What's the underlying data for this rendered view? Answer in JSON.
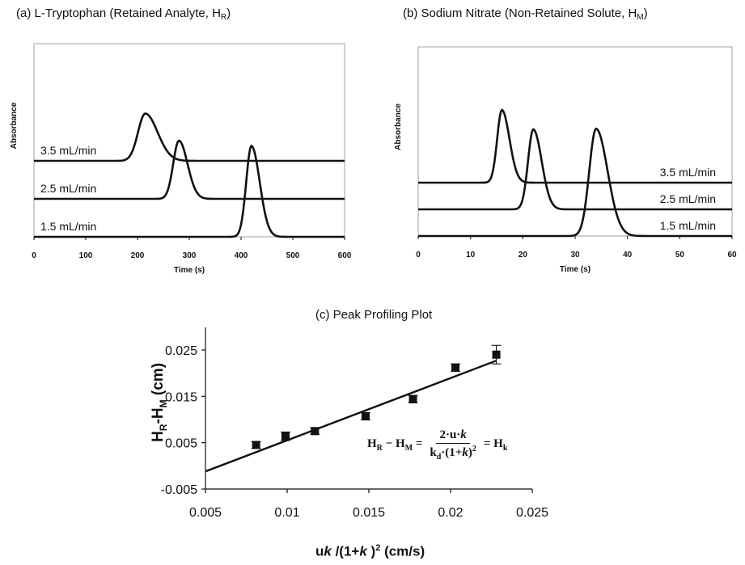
{
  "panels": {
    "a": {
      "title_main": "(a) L-Tryptophan (Retained Analyte, H",
      "title_sub": "R",
      "title_end": ")"
    },
    "b": {
      "title_main": "(b) Sodium Nitrate (Non-Retained Solute, H",
      "title_sub": "M",
      "title_end": ")"
    },
    "c": {
      "title": "(c) Peak Profiling Plot",
      "ylabel": "HR-HM (cm)",
      "xlabel": "uk /(1+k )2 (cm/s)",
      "formula": {
        "lhs": "H_R − H_M =",
        "numerator": "2·u·k",
        "denominator": "k_d·(1+k)^2",
        "rhs": "= H_k"
      }
    }
  },
  "chart_data": [
    {
      "type": "line",
      "title": "(a) L-Tryptophan (Retained Analyte, HR)",
      "xlabel": "Time (s)",
      "ylabel": "Absorbance",
      "xlim": [
        0,
        600
      ],
      "xticks": [
        "0",
        "100",
        "200",
        "300",
        "400",
        "500",
        "600"
      ],
      "grid": false,
      "series": [
        {
          "name": "3.5 mL/min",
          "baseline": 2,
          "peak_time": 215,
          "peak_height": 2.6
        },
        {
          "name": "2.5 mL/min",
          "baseline": 1,
          "peak_time": 280,
          "peak_height": 3.2
        },
        {
          "name": "1.5 mL/min",
          "baseline": 0,
          "peak_time": 420,
          "peak_height": 5.0
        }
      ]
    },
    {
      "type": "line",
      "title": "(b) Sodium Nitrate (Non-Retained Solute, HM)",
      "xlabel": "Time (s)",
      "ylabel": "Absorbance",
      "xlim": [
        0,
        60
      ],
      "xticks": [
        "0",
        "10",
        "20",
        "30",
        "40",
        "50",
        "60"
      ],
      "grid": false,
      "series": [
        {
          "name": "3.5 mL/min",
          "baseline": 2,
          "peak_time": 16,
          "peak_height": 4.0
        },
        {
          "name": "2.5 mL/min",
          "baseline": 1,
          "peak_time": 22,
          "peak_height": 4.4
        },
        {
          "name": "1.5 mL/min",
          "baseline": 0,
          "peak_time": 34,
          "peak_height": 5.9
        }
      ]
    },
    {
      "type": "scatter",
      "title": "(c) Peak Profiling Plot",
      "xlabel": "uk /(1+k )2 (cm/s)",
      "ylabel": "HR-HM (cm)",
      "xlim": [
        0.005,
        0.025
      ],
      "ylim": [
        -0.005,
        0.03
      ],
      "xticks": [
        "0.005",
        "0.01",
        "0.015",
        "0.02",
        "0.025"
      ],
      "yticks": [
        "-0.005",
        "0.005",
        "0.015",
        "0.025"
      ],
      "grid": false,
      "points": [
        {
          "x": 0.0081,
          "y": 0.0045,
          "err": 0.0007
        },
        {
          "x": 0.0099,
          "y": 0.0064,
          "err": 0.0009
        },
        {
          "x": 0.0117,
          "y": 0.0075,
          "err": 0.0007
        },
        {
          "x": 0.0148,
          "y": 0.0107,
          "err": 0.0008
        },
        {
          "x": 0.0177,
          "y": 0.0144,
          "err": 0.0008
        },
        {
          "x": 0.0203,
          "y": 0.0212,
          "err": 0.0008
        },
        {
          "x": 0.0228,
          "y": 0.024,
          "err": 0.002
        }
      ],
      "fit_line": {
        "x": [
          0.005,
          0.0228
        ],
        "y": [
          -0.0012,
          0.0227
        ]
      }
    }
  ]
}
